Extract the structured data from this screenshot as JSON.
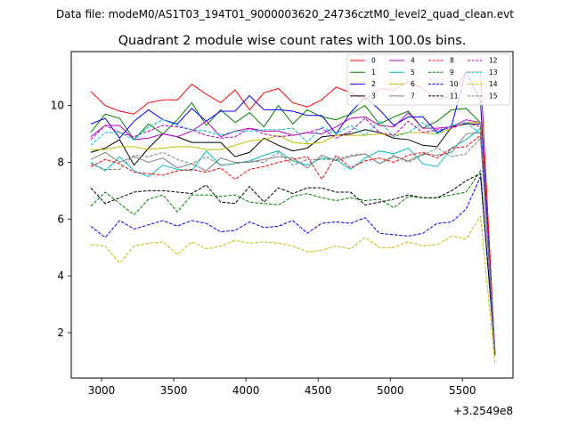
{
  "chart_data": {
    "type": "line",
    "suptitle": "Data file: modeM0/AS1T03_194T01_9000003620_24736cztM0_level2_quad_clean.evt",
    "title": "Quadrant 2 module wise count rates with 100.0s bins.",
    "xlabel": "",
    "ylabel": "",
    "x_offset_label": "+3.2549e8",
    "xlim": [
      2790,
      5850
    ],
    "ylim": [
      0.4,
      11.9
    ],
    "xticks": [
      3000,
      3500,
      4000,
      4500,
      5000,
      5500
    ],
    "yticks": [
      2,
      4,
      6,
      8,
      10
    ],
    "grid": false,
    "legend_position": "top-right",
    "x": [
      2925,
      3025,
      3125,
      3225,
      3325,
      3425,
      3525,
      3625,
      3725,
      3825,
      3925,
      4025,
      4125,
      4225,
      4325,
      4425,
      4525,
      4625,
      4725,
      4825,
      4925,
      5025,
      5125,
      5225,
      5325,
      5425,
      5525,
      5625,
      5725
    ],
    "series": [
      {
        "name": "0",
        "color": "#ff0000",
        "dash": "solid",
        "values": [
          10.5,
          10.0,
          9.8,
          9.7,
          10.1,
          10.2,
          10.2,
          10.75,
          10.4,
          10.1,
          10.55,
          9.85,
          10.45,
          10.6,
          10.1,
          9.95,
          10.2,
          10.65,
          10.45,
          10.2,
          10.6,
          10.55,
          10.85,
          10.6,
          10.2,
          10.35,
          11.2,
          11.2,
          1.3
        ]
      },
      {
        "name": "1",
        "color": "#008000",
        "dash": "solid",
        "values": [
          9.05,
          9.7,
          9.55,
          8.8,
          9.35,
          9.0,
          9.5,
          10.1,
          9.3,
          9.85,
          9.4,
          9.75,
          9.25,
          10.0,
          9.35,
          9.85,
          9.6,
          9.5,
          9.7,
          10.0,
          9.35,
          9.6,
          9.8,
          9.2,
          9.45,
          9.85,
          9.9,
          9.4,
          1.4
        ]
      },
      {
        "name": "2",
        "color": "#0000ff",
        "dash": "solid",
        "values": [
          9.35,
          9.55,
          8.85,
          9.45,
          9.85,
          9.5,
          9.35,
          9.9,
          9.45,
          9.8,
          9.8,
          10.35,
          9.85,
          9.85,
          9.8,
          9.65,
          9.65,
          9.0,
          9.75,
          10.3,
          9.85,
          9.3,
          9.6,
          9.6,
          9.05,
          9.3,
          11.2,
          10.15,
          1.2
        ]
      },
      {
        "name": "3",
        "color": "#000000",
        "dash": "solid",
        "values": [
          8.35,
          8.5,
          8.8,
          7.9,
          8.5,
          9.0,
          8.9,
          8.7,
          8.7,
          8.7,
          8.2,
          8.35,
          8.85,
          8.6,
          8.4,
          8.5,
          8.9,
          8.95,
          9.0,
          9.15,
          9.05,
          8.85,
          8.8,
          8.6,
          8.55,
          9.25,
          9.35,
          9.35,
          1.3
        ]
      },
      {
        "name": "4",
        "color": "#bf00bf",
        "dash": "solid",
        "values": [
          8.9,
          9.3,
          9.3,
          8.8,
          8.85,
          9.0,
          8.9,
          9.1,
          9.45,
          8.9,
          9.1,
          9.2,
          9.1,
          9.1,
          8.95,
          9.05,
          9.0,
          9.25,
          9.55,
          9.6,
          9.3,
          9.25,
          9.75,
          9.2,
          9.2,
          9.25,
          9.5,
          9.4,
          1.3
        ]
      },
      {
        "name": "5",
        "color": "#00bfbf",
        "dash": "solid",
        "values": [
          8.0,
          7.7,
          8.2,
          7.7,
          7.5,
          7.9,
          7.75,
          7.7,
          8.4,
          7.9,
          7.95,
          8.05,
          8.25,
          8.4,
          8.05,
          7.9,
          8.15,
          8.1,
          7.75,
          8.15,
          8.4,
          8.3,
          8.5,
          7.95,
          7.85,
          8.5,
          8.8,
          9.2,
          1.4
        ]
      },
      {
        "name": "6",
        "color": "#bfbf00",
        "dash": "solid",
        "values": [
          8.45,
          8.45,
          8.55,
          8.55,
          8.45,
          8.5,
          8.55,
          8.55,
          8.45,
          8.45,
          8.6,
          8.75,
          8.8,
          8.95,
          8.7,
          8.65,
          8.7,
          8.95,
          8.95,
          8.95,
          9.0,
          8.95,
          9.05,
          9.05,
          9.0,
          9.2,
          9.4,
          9.4,
          1.2
        ]
      },
      {
        "name": "7",
        "color": "#808080",
        "dash": "solid",
        "values": [
          8.1,
          8.35,
          8.0,
          8.2,
          8.0,
          8.15,
          7.8,
          7.95,
          7.7,
          8.15,
          8.0,
          8.0,
          8.1,
          8.2,
          8.15,
          7.8,
          8.25,
          8.05,
          8.2,
          8.3,
          7.95,
          8.2,
          8.05,
          8.3,
          8.25,
          8.35,
          9.0,
          9.05,
          1.3
        ]
      },
      {
        "name": "8",
        "color": "#ff0000",
        "dash": "dashed",
        "values": [
          7.85,
          8.1,
          7.95,
          7.65,
          7.6,
          7.55,
          7.7,
          7.75,
          7.65,
          7.8,
          7.4,
          7.75,
          7.85,
          8.0,
          8.1,
          8.2,
          7.4,
          8.25,
          7.8,
          8.05,
          8.15,
          8.0,
          8.25,
          8.35,
          8.15,
          8.5,
          8.55,
          8.95,
          1.3
        ]
      },
      {
        "name": "9",
        "color": "#008000",
        "dash": "dashed",
        "values": [
          6.45,
          6.95,
          6.55,
          6.15,
          6.7,
          6.85,
          6.25,
          6.85,
          6.85,
          6.8,
          6.85,
          6.6,
          6.55,
          6.5,
          6.8,
          6.9,
          6.75,
          6.65,
          6.75,
          6.65,
          6.7,
          6.4,
          6.8,
          6.75,
          6.75,
          6.85,
          6.95,
          7.7,
          1.2
        ]
      },
      {
        "name": "10",
        "color": "#0000ff",
        "dash": "dashed",
        "values": [
          5.75,
          5.35,
          5.95,
          5.65,
          5.8,
          5.95,
          5.75,
          5.95,
          5.85,
          5.55,
          5.6,
          5.9,
          5.7,
          5.75,
          5.95,
          5.5,
          5.85,
          5.9,
          5.85,
          6.05,
          5.5,
          5.45,
          5.4,
          5.5,
          5.85,
          5.9,
          6.35,
          7.5,
          1.3
        ]
      },
      {
        "name": "11",
        "color": "#000000",
        "dash": "dashed",
        "values": [
          7.1,
          6.55,
          6.75,
          6.95,
          7.0,
          7.0,
          6.95,
          6.9,
          7.2,
          6.6,
          6.55,
          7.15,
          6.6,
          7.1,
          6.9,
          7.1,
          7.1,
          6.95,
          6.95,
          6.5,
          6.6,
          6.7,
          6.85,
          6.75,
          6.75,
          7.0,
          7.35,
          7.6,
          1.3
        ]
      },
      {
        "name": "12",
        "color": "#bf00bf",
        "dash": "dashed",
        "values": [
          8.8,
          9.3,
          9.05,
          8.9,
          9.1,
          9.3,
          9.25,
          9.15,
          8.95,
          8.85,
          8.9,
          9.2,
          9.0,
          8.9,
          8.95,
          9.05,
          9.2,
          8.85,
          9.1,
          9.55,
          9.05,
          8.95,
          9.45,
          9.05,
          9.15,
          9.2,
          9.4,
          9.25,
          1.2
        ]
      },
      {
        "name": "13",
        "color": "#00bfbf",
        "dash": "dashed",
        "values": [
          8.6,
          9.05,
          9.05,
          8.8,
          9.25,
          9.5,
          9.3,
          9.15,
          9.1,
          8.95,
          9.1,
          9.1,
          9.15,
          9.15,
          9.2,
          8.7,
          9.25,
          9.0,
          9.3,
          8.95,
          9.45,
          8.9,
          9.05,
          9.4,
          9.0,
          9.3,
          9.4,
          9.0,
          1.4
        ]
      },
      {
        "name": "14",
        "color": "#bfbf00",
        "dash": "dashed",
        "values": [
          5.1,
          5.05,
          4.45,
          5.05,
          5.15,
          5.2,
          4.75,
          5.2,
          4.95,
          5.05,
          5.25,
          5.15,
          5.2,
          5.15,
          5.05,
          4.85,
          4.9,
          5.05,
          4.95,
          5.35,
          5.0,
          5.0,
          5.2,
          5.05,
          5.1,
          5.4,
          5.3,
          6.1,
          0.9
        ]
      },
      {
        "name": "15",
        "color": "#808080",
        "dash": "dashed",
        "values": [
          7.95,
          7.75,
          7.75,
          8.25,
          8.2,
          8.35,
          8.1,
          7.95,
          8.2,
          7.9,
          7.95,
          8.05,
          8.0,
          8.35,
          7.9,
          8.1,
          8.1,
          8.1,
          8.25,
          8.3,
          7.95,
          8.25,
          8.0,
          8.25,
          8.5,
          8.2,
          8.3,
          8.85,
          1.3
        ]
      }
    ]
  }
}
